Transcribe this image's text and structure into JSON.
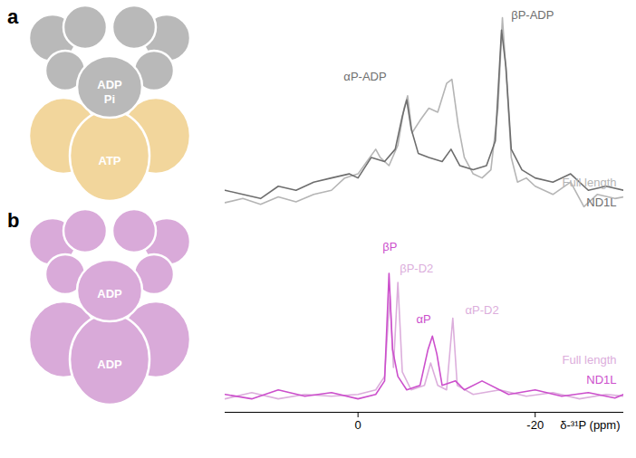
{
  "chart_data": [
    {
      "type": "line",
      "panel": "a",
      "diagram_labels": [
        "ADP",
        "Pi",
        "ATP"
      ],
      "xlim": [
        15,
        -30
      ],
      "ylim": [
        -10,
        240
      ],
      "tick_labels": false,
      "series": [
        {
          "name": "Full length",
          "color": "#b5b5b5",
          "x": [
            15,
            13,
            11,
            9,
            7,
            5,
            3,
            1.5,
            0,
            -1,
            -2,
            -2.5,
            -3.5,
            -4.5,
            -5.2,
            -5.6,
            -6.1,
            -7,
            -8,
            -9,
            -10,
            -10.6,
            -11.3,
            -12,
            -13,
            -14,
            -15,
            -15.8,
            -16.3,
            -16.8,
            -17.3,
            -18,
            -19,
            -20,
            -22,
            -24,
            -25.5,
            -27,
            -29,
            -30
          ],
          "values": [
            5,
            10,
            3,
            12,
            6,
            15,
            20,
            35,
            40,
            55,
            70,
            60,
            50,
            75,
            120,
            135,
            90,
            105,
            120,
            115,
            150,
            155,
            100,
            60,
            40,
            35,
            45,
            120,
            230,
            150,
            60,
            30,
            35,
            25,
            15,
            30,
            0,
            15,
            10,
            12
          ]
        },
        {
          "name": "ND1L",
          "color": "#6e6e6e",
          "x": [
            15,
            13,
            11,
            9,
            7,
            5,
            3,
            1,
            0,
            -1.5,
            -3,
            -4.2,
            -5,
            -5.5,
            -6,
            -6.8,
            -8,
            -9.5,
            -10.5,
            -11.5,
            -13,
            -14.5,
            -15.5,
            -16.2,
            -16.7,
            -17.3,
            -18.5,
            -20,
            -22,
            -24,
            -26,
            -28,
            -30
          ],
          "values": [
            20,
            15,
            10,
            25,
            20,
            30,
            35,
            40,
            35,
            60,
            55,
            70,
            110,
            130,
            95,
            65,
            60,
            55,
            70,
            50,
            45,
            50,
            80,
            215,
            170,
            70,
            45,
            35,
            30,
            40,
            20,
            25,
            20
          ]
        }
      ],
      "annotations": [
        {
          "text": "αP-ADP",
          "x": -0.8,
          "y": 153,
          "color": "#6e6e6e"
        },
        {
          "text": "βP-ADP",
          "x": -19.7,
          "y": 228,
          "color": "#6e6e6e"
        }
      ]
    },
    {
      "type": "line",
      "panel": "b",
      "diagram_labels": [
        "ADP",
        "ADP"
      ],
      "x_label": "δ-³¹P (ppm)",
      "xlim": [
        15,
        -30
      ],
      "xticks": [
        0,
        -20
      ],
      "ylim": [
        -10,
        190
      ],
      "tick_labels": "x",
      "series": [
        {
          "name": "Full length",
          "color": "#dcaedc",
          "x": [
            15,
            12,
            9,
            6,
            3,
            0,
            -2,
            -3,
            -3.6,
            -4,
            -4.5,
            -5,
            -6,
            -7.5,
            -8.2,
            -9,
            -10,
            -10.7,
            -11.2,
            -13,
            -16,
            -19,
            -22,
            -25,
            -28,
            -30
          ],
          "values": [
            5,
            12,
            5,
            10,
            8,
            10,
            15,
            30,
            120,
            40,
            135,
            35,
            15,
            20,
            45,
            20,
            15,
            95,
            20,
            10,
            15,
            8,
            12,
            5,
            10,
            8
          ]
        },
        {
          "name": "ND1L",
          "color": "#cc4fcc",
          "x": [
            15,
            12,
            9,
            6,
            3,
            0,
            -2,
            -3,
            -3.5,
            -3.9,
            -4.5,
            -5.5,
            -7,
            -7.9,
            -8.4,
            -8.9,
            -9.5,
            -11,
            -12,
            -14,
            -17,
            -20,
            -23,
            -26,
            -29,
            -30
          ],
          "values": [
            10,
            5,
            15,
            8,
            12,
            5,
            10,
            25,
            145,
            60,
            30,
            15,
            20,
            60,
            75,
            55,
            20,
            25,
            15,
            25,
            10,
            15,
            8,
            12,
            6,
            10
          ]
        }
      ],
      "annotations": [
        {
          "text": "βP",
          "x": -3.6,
          "y": 170,
          "color": "#cc4fcc"
        },
        {
          "text": "βP-D2",
          "x": -6.6,
          "y": 146,
          "color": "#dcaedc"
        },
        {
          "text": "αP",
          "x": -7.4,
          "y": 90,
          "color": "#cc4fcc"
        },
        {
          "text": "αP-D2",
          "x": -14.0,
          "y": 100,
          "color": "#dcaedc"
        }
      ]
    }
  ]
}
